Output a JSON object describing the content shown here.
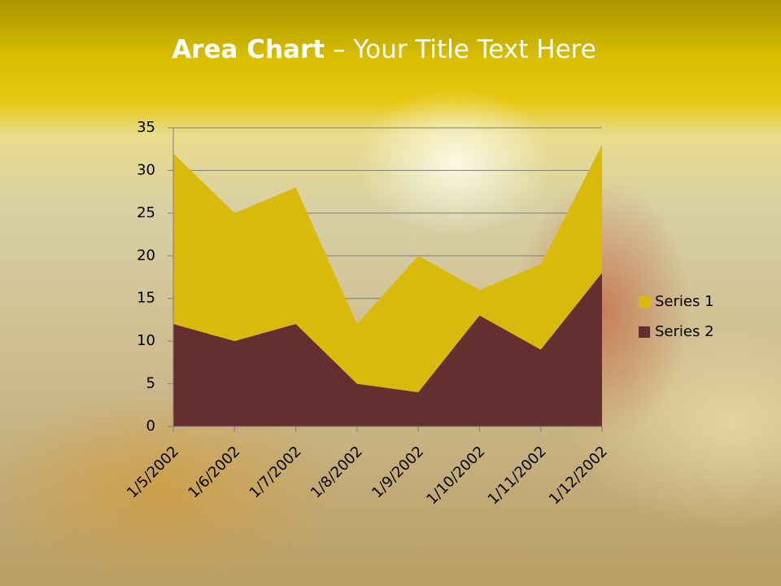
{
  "chart_data": {
    "type": "area",
    "title_parts": [
      "Area Chart",
      "– Your Title Text Here"
    ],
    "categories": [
      "1/5/2002",
      "1/6/2002",
      "1/7/2002",
      "1/8/2002",
      "1/9/2002",
      "1/10/2002",
      "1/11/2002",
      "1/12/2002"
    ],
    "series": [
      {
        "name": "Series 1",
        "color": "#d8b90c",
        "values": [
          32,
          25,
          28,
          12,
          20,
          16,
          19,
          33
        ]
      },
      {
        "name": "Series 2",
        "color": "#652f30",
        "values": [
          12,
          10,
          12,
          5,
          4,
          13,
          9,
          18
        ]
      }
    ],
    "ylim": [
      0,
      35
    ],
    "yticks": [
      0,
      5,
      10,
      15,
      20,
      25,
      30,
      35
    ],
    "grid": true,
    "legend": "right"
  }
}
